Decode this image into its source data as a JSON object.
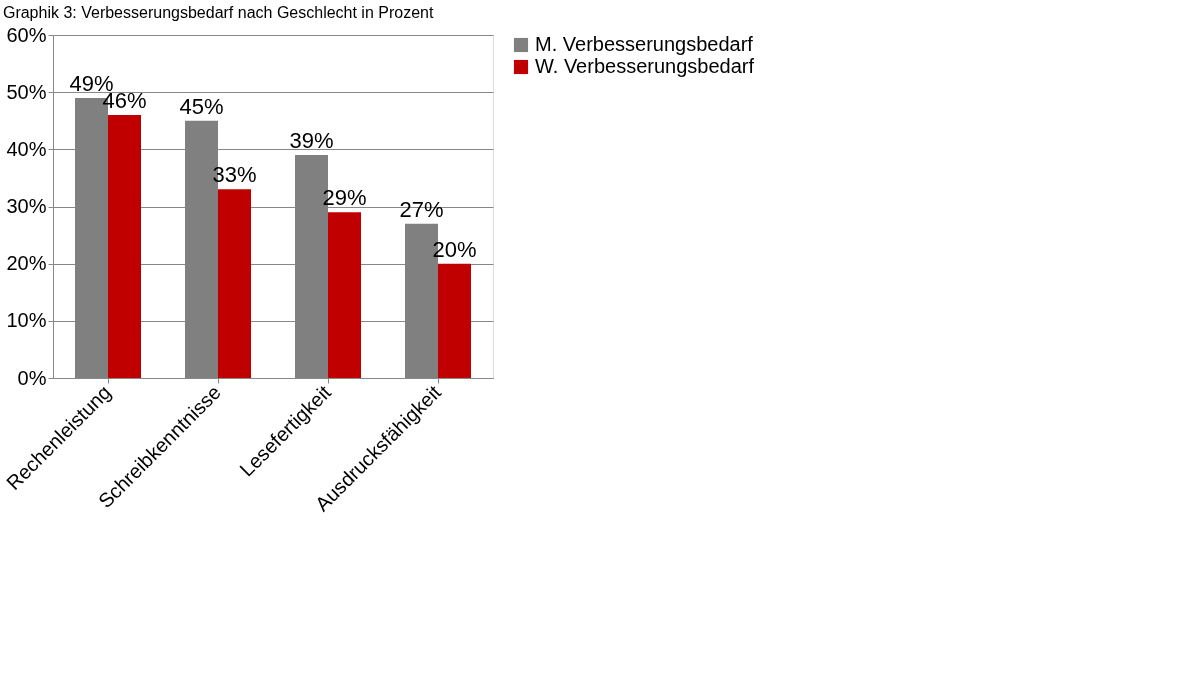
{
  "chart_data": {
    "type": "bar",
    "title": "Graphik 3: Verbesserungsbedarf nach Geschlecht in Prozent",
    "categories": [
      "Rechenleistung",
      "Schreibkenntnisse",
      "Lesefertigkeit",
      "Ausdrucksfähigkeit"
    ],
    "series": [
      {
        "name": "M. Verbesserungsbedarf",
        "color": "#808080",
        "values": [
          49,
          45,
          39,
          27
        ],
        "value_labels": [
          "49%",
          "45%",
          "39%",
          "27%"
        ]
      },
      {
        "name": "W. Verbesserungsbedarf",
        "color": "#c00000",
        "values": [
          46,
          33,
          29,
          20
        ],
        "value_labels": [
          "46%",
          "33%",
          "29%",
          "20%"
        ]
      }
    ],
    "ylim": [
      0,
      60
    ],
    "yticks": [
      {
        "value": 0,
        "label": "0%"
      },
      {
        "value": 10,
        "label": "10%"
      },
      {
        "value": 20,
        "label": "20%"
      },
      {
        "value": 30,
        "label": "30%"
      },
      {
        "value": 40,
        "label": "40%"
      },
      {
        "value": 50,
        "label": "50%"
      },
      {
        "value": 60,
        "label": "60%"
      }
    ],
    "grid": "y",
    "legend": "right"
  }
}
